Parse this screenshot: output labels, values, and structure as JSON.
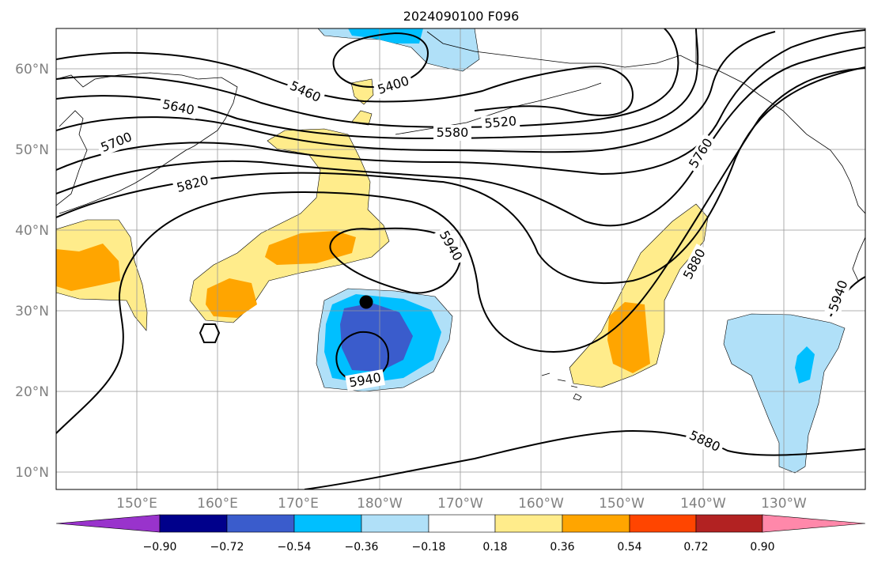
{
  "title": "2024090100 F096",
  "lat_labels": [
    "60°N",
    "50°N",
    "40°N",
    "30°N",
    "20°N",
    "10°N"
  ],
  "lon_labels": [
    "150°E",
    "160°E",
    "170°E",
    "180°W",
    "170°W",
    "160°W",
    "150°W",
    "140°W",
    "130°W"
  ],
  "contour_labels": [
    "5400",
    "5460",
    "5520",
    "5580",
    "5640",
    "5700",
    "5760",
    "5820",
    "5880",
    "5880",
    "5940",
    "5940",
    "5940"
  ],
  "colorbar": {
    "tick_labels": [
      "−0.90",
      "−0.72",
      "−0.54",
      "−0.36",
      "−0.18",
      "0.18",
      "0.36",
      "0.54",
      "0.72",
      "0.90"
    ],
    "colors": {
      "c_lt_n090": "#9933cc",
      "c_n090_n072": "#00008b",
      "c_n072_n054": "#3a5ccc",
      "c_n054_n036": "#00bfff",
      "c_n036_n018": "#b0e0f8",
      "c_n018_018": "#ffffff",
      "c_018_036": "#ffec8b",
      "c_036_054": "#ffa500",
      "c_054_072": "#ff4500",
      "c_072_090": "#b22222",
      "c_gt_090": "#ff88aa"
    }
  }
}
